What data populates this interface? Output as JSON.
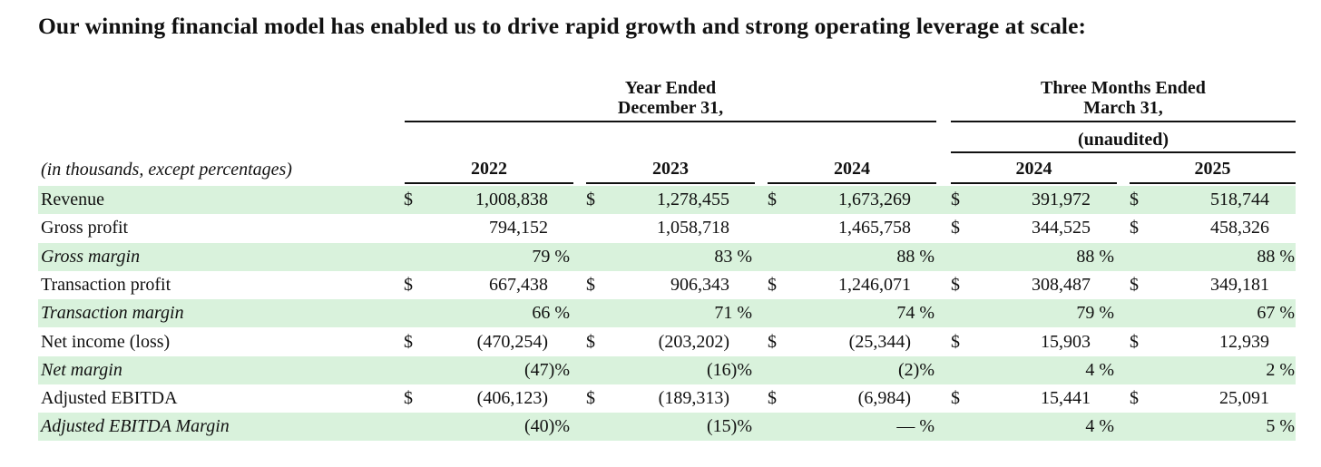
{
  "headline": "Our winning financial model has enabled us to drive rapid growth and strong operating leverage at scale:",
  "table": {
    "units_label": "(in thousands, except percentages)",
    "group_headers": {
      "year_ended": [
        "Year Ended",
        "December 31,"
      ],
      "three_months": [
        "Three Months Ended",
        "March 31,"
      ],
      "unaudited": "(unaudited)"
    },
    "columns": [
      "2022",
      "2023",
      "2024",
      "2024",
      "2025"
    ],
    "rows": [
      {
        "label": "Revenue",
        "italic": false,
        "shaded": true,
        "cells": [
          {
            "cur": "$",
            "v": "1,008,838"
          },
          {
            "cur": "$",
            "v": "1,278,455"
          },
          {
            "cur": "$",
            "v": "1,673,269"
          },
          {
            "cur": "$",
            "v": "391,972"
          },
          {
            "cur": "$",
            "v": "518,744"
          }
        ]
      },
      {
        "label": "Gross profit",
        "italic": false,
        "shaded": false,
        "cells": [
          {
            "cur": "",
            "v": "794,152"
          },
          {
            "cur": "",
            "v": "1,058,718"
          },
          {
            "cur": "",
            "v": "1,465,758"
          },
          {
            "cur": "$",
            "v": "344,525"
          },
          {
            "cur": "$",
            "v": "458,326"
          }
        ]
      },
      {
        "label": "Gross margin",
        "italic": true,
        "shaded": true,
        "cells": [
          {
            "cur": "",
            "v": "79 %"
          },
          {
            "cur": "",
            "v": "83 %"
          },
          {
            "cur": "",
            "v": "88 %"
          },
          {
            "cur": "",
            "v": "88 %"
          },
          {
            "cur": "",
            "v": "88 %"
          }
        ]
      },
      {
        "label": "Transaction profit",
        "italic": false,
        "shaded": false,
        "cells": [
          {
            "cur": "$",
            "v": "667,438"
          },
          {
            "cur": "$",
            "v": "906,343"
          },
          {
            "cur": "$",
            "v": "1,246,071"
          },
          {
            "cur": "$",
            "v": "308,487"
          },
          {
            "cur": "$",
            "v": "349,181"
          }
        ]
      },
      {
        "label": "Transaction margin",
        "italic": true,
        "shaded": true,
        "cells": [
          {
            "cur": "",
            "v": "66 %"
          },
          {
            "cur": "",
            "v": "71 %"
          },
          {
            "cur": "",
            "v": "74 %"
          },
          {
            "cur": "",
            "v": "79 %"
          },
          {
            "cur": "",
            "v": "67 %"
          }
        ]
      },
      {
        "label": "Net income (loss)",
        "italic": false,
        "shaded": false,
        "cells": [
          {
            "cur": "$",
            "v": "(470,254)"
          },
          {
            "cur": "$",
            "v": "(203,202)"
          },
          {
            "cur": "$",
            "v": "(25,344)"
          },
          {
            "cur": "$",
            "v": "15,903"
          },
          {
            "cur": "$",
            "v": "12,939"
          }
        ]
      },
      {
        "label": "Net margin",
        "italic": true,
        "shaded": true,
        "cells": [
          {
            "cur": "",
            "v": "(47)%"
          },
          {
            "cur": "",
            "v": "(16)%"
          },
          {
            "cur": "",
            "v": "(2)%"
          },
          {
            "cur": "",
            "v": "4 %"
          },
          {
            "cur": "",
            "v": "2 %"
          }
        ]
      },
      {
        "label": "Adjusted EBITDA",
        "italic": false,
        "shaded": false,
        "cells": [
          {
            "cur": "$",
            "v": "(406,123)"
          },
          {
            "cur": "$",
            "v": "(189,313)"
          },
          {
            "cur": "$",
            "v": "(6,984)"
          },
          {
            "cur": "$",
            "v": "15,441"
          },
          {
            "cur": "$",
            "v": "25,091"
          }
        ]
      },
      {
        "label": "Adjusted EBITDA Margin",
        "italic": true,
        "shaded": true,
        "cells": [
          {
            "cur": "",
            "v": "(40)%"
          },
          {
            "cur": "",
            "v": "(15)%"
          },
          {
            "cur": "",
            "v": "— %"
          },
          {
            "cur": "",
            "v": "4 %"
          },
          {
            "cur": "",
            "v": "5 %"
          }
        ]
      }
    ]
  }
}
